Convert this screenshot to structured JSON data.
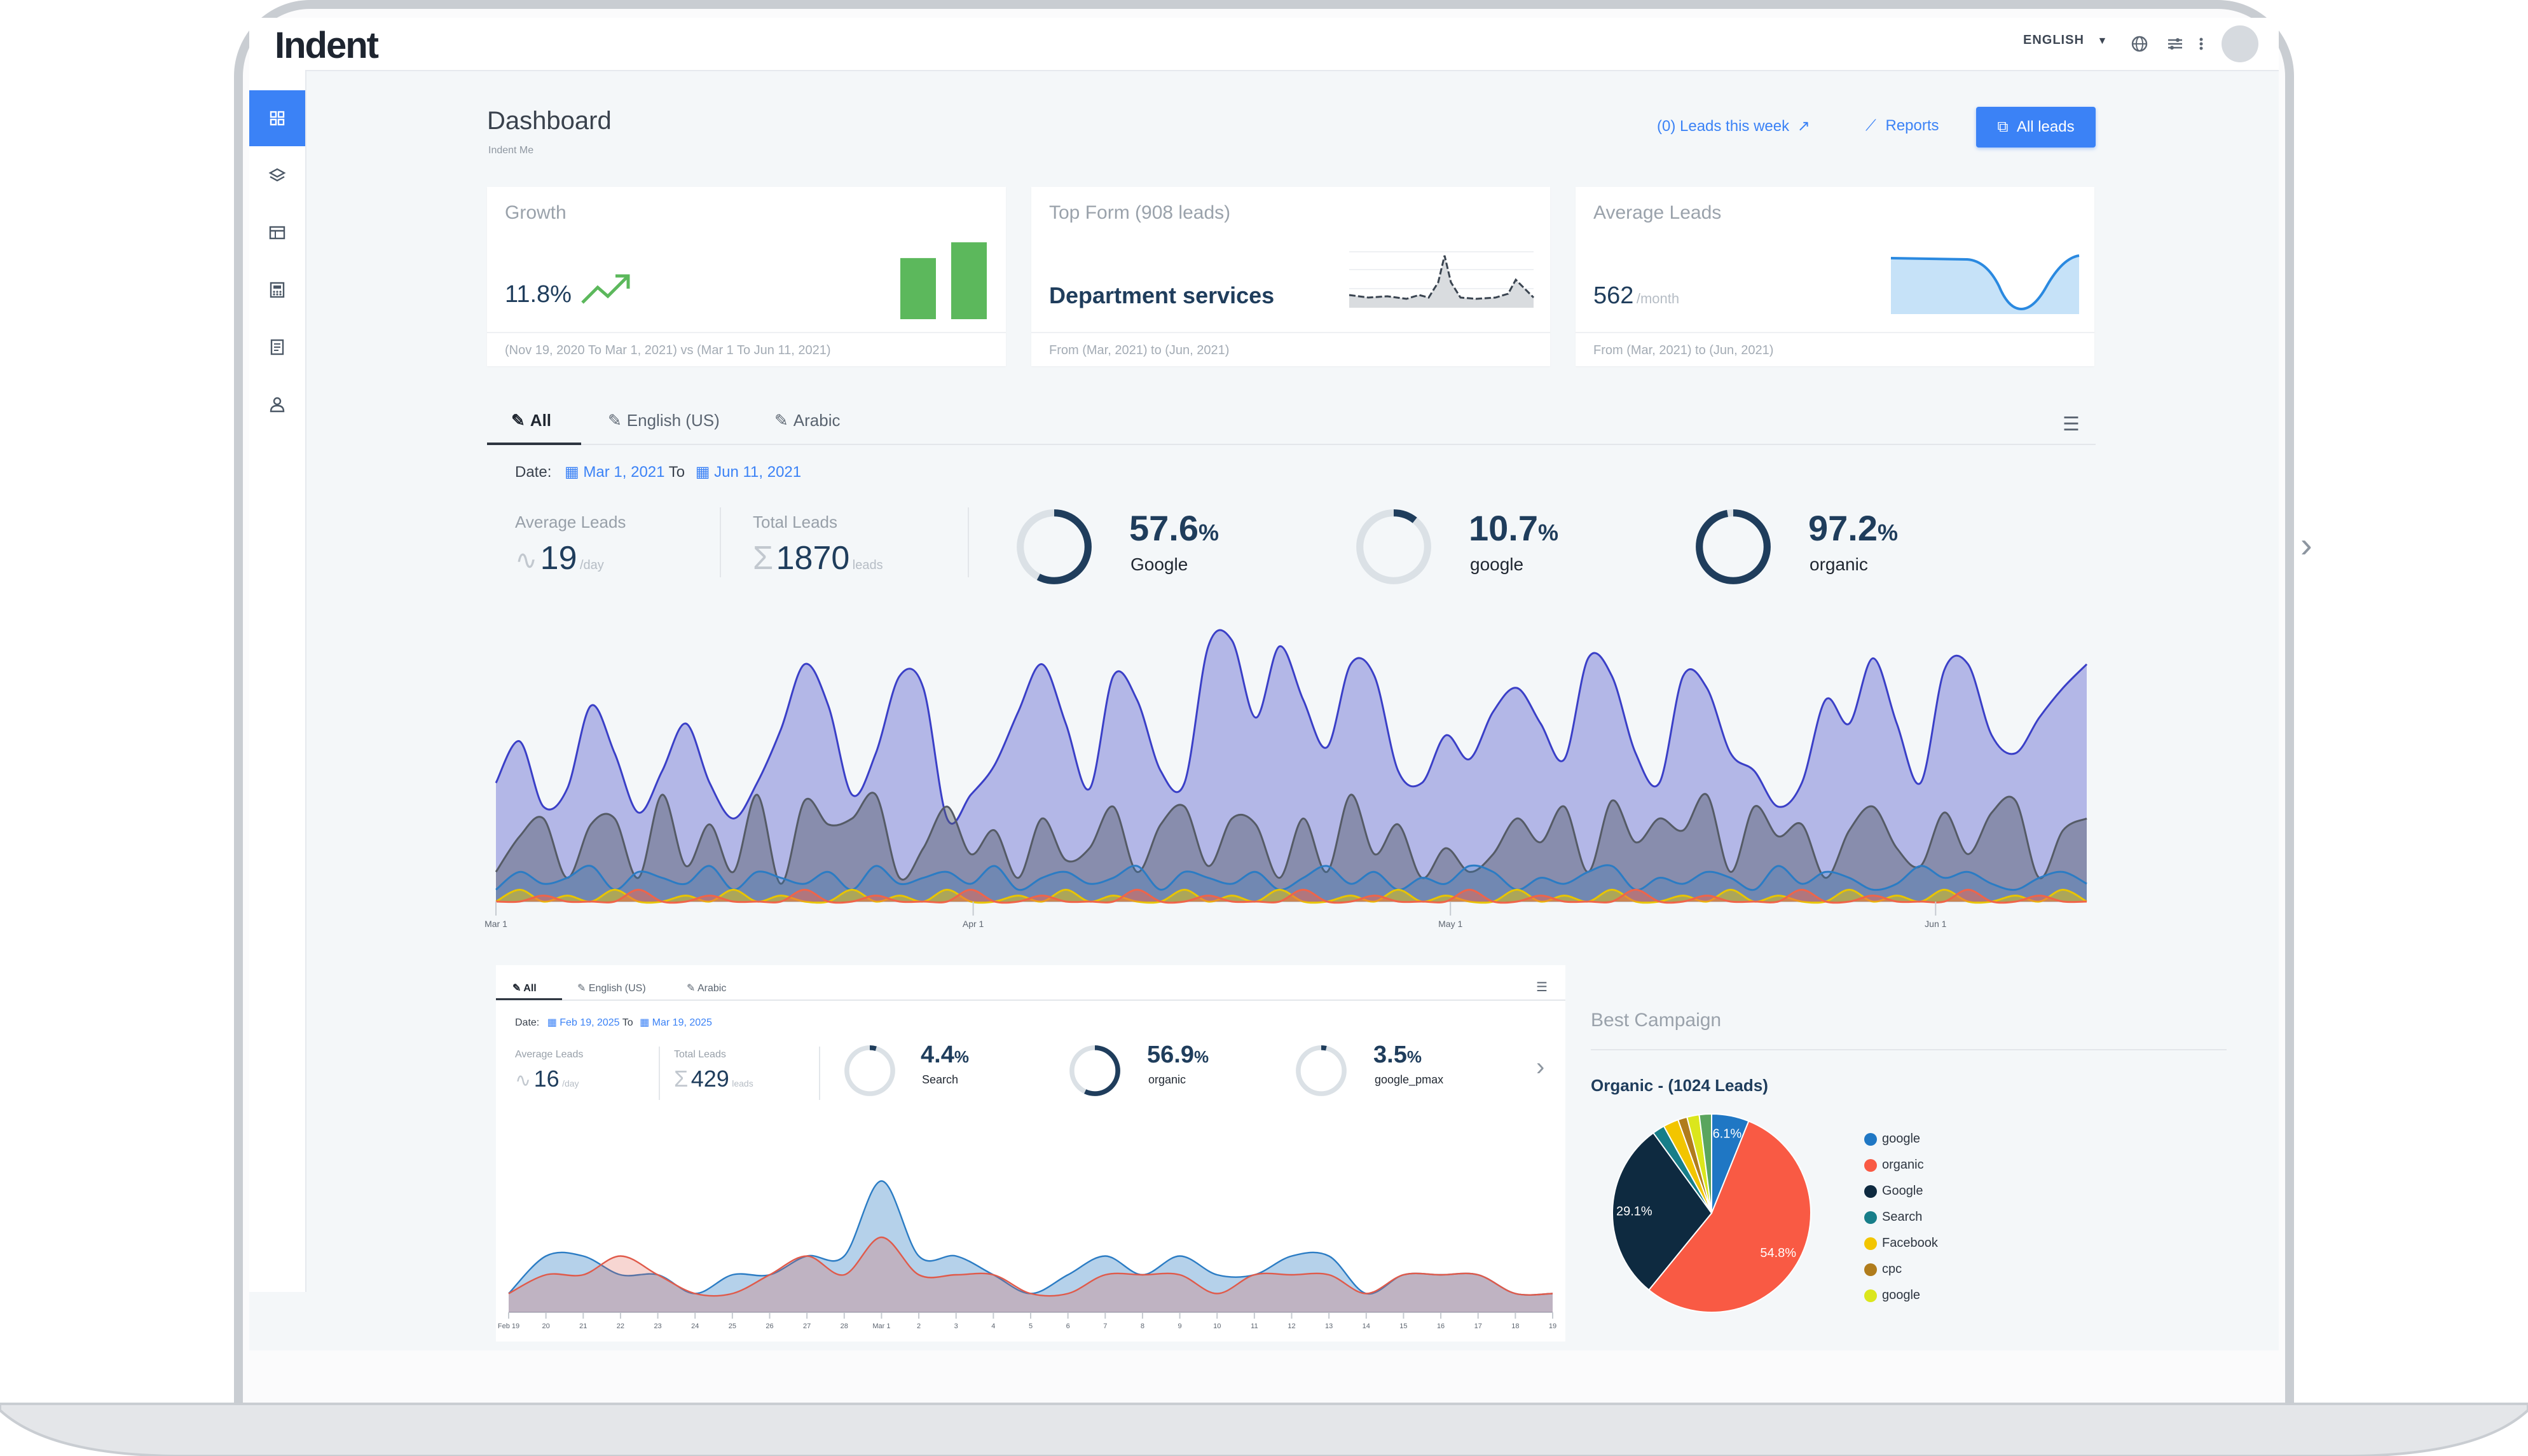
{
  "app": {
    "logo_text": "Indent"
  },
  "topbar": {
    "language": "ENGLISH",
    "icons": [
      "globe-icon",
      "sliders-icon",
      "more-vertical-icon"
    ]
  },
  "sidebar": {
    "items": [
      {
        "icon": "dashboard-icon",
        "active": true
      },
      {
        "icon": "layers-icon",
        "active": false
      },
      {
        "icon": "table-icon",
        "active": false
      },
      {
        "icon": "calculator-icon",
        "active": false
      },
      {
        "icon": "document-icon",
        "active": false
      },
      {
        "icon": "user-icon",
        "active": false
      }
    ]
  },
  "header": {
    "title": "Dashboard",
    "subtitle": "Indent Me",
    "leads_this_week": "(0) Leads this week",
    "reports": "Reports",
    "all_leads": "All leads"
  },
  "cards": {
    "growth": {
      "title": "Growth",
      "value": "11.8%",
      "footer": "(Nov 19, 2020 To Mar 1, 2021) vs (Mar 1 To Jun 11, 2021)",
      "bars": [
        3.1,
        3.9
      ],
      "color": "#5cb85c"
    },
    "top_form": {
      "title": "Top Form (908 leads)",
      "value": "Department services",
      "footer": "From (Mar, 2021) to (Jun, 2021)"
    },
    "average_leads": {
      "title": "Average Leads",
      "value": "562",
      "unit": "/month",
      "footer": "From (Mar, 2021) to (Jun, 2021)"
    }
  },
  "main": {
    "tabs": [
      {
        "label": "All"
      },
      {
        "label": "English (US)"
      },
      {
        "label": "Arabic"
      }
    ],
    "date_label": "Date:",
    "date_from": "Mar 1, 2021",
    "date_to_word": "To",
    "date_to": "Jun 11, 2021",
    "avg_leads_label": "Average Leads",
    "avg_leads_value": "19",
    "avg_leads_unit": "/day",
    "total_leads_label": "Total Leads",
    "total_leads_value": "1870",
    "total_leads_unit": "leads",
    "donuts": [
      {
        "value": "57.6",
        "label": "Google",
        "fraction": 0.576
      },
      {
        "value": "10.7",
        "label": "google",
        "fraction": 0.107
      },
      {
        "value": "97.2",
        "label": "organic",
        "fraction": 0.972
      }
    ],
    "pct_sign": "%"
  },
  "small_panel": {
    "tabs": [
      {
        "label": "All"
      },
      {
        "label": "English (US)"
      },
      {
        "label": "Arabic"
      }
    ],
    "date_label": "Date:",
    "date_from": "Feb 19, 2025",
    "date_to_word": "To",
    "date_to": "Mar 19, 2025",
    "avg_leads_label": "Average Leads",
    "avg_leads_value": "16",
    "avg_leads_unit": "/day",
    "total_leads_label": "Total Leads",
    "total_leads_value": "429",
    "total_leads_unit": "leads",
    "donuts": [
      {
        "value": "4.4",
        "label": "Search",
        "fraction": 0.044
      },
      {
        "value": "56.9",
        "label": "organic",
        "fraction": 0.569
      },
      {
        "value": "3.5",
        "label": "google_pmax",
        "fraction": 0.035
      }
    ]
  },
  "best_campaign": {
    "title": "Best Campaign",
    "subtitle": "Organic - (1024 Leads)"
  },
  "chart_data": [
    {
      "type": "area",
      "x_tick_labels": [
        "Mar 1",
        "Apr 1",
        "May 1",
        "Jun 1"
      ],
      "series": [
        {
          "color": "#3a3fc7",
          "values": [
            20,
            27,
            16,
            19,
            33,
            25,
            15,
            22,
            30,
            20,
            14,
            20,
            29,
            40,
            33,
            18,
            25,
            38,
            36,
            14,
            18,
            23,
            32,
            40,
            30,
            19,
            38,
            34,
            22,
            20,
            43,
            44,
            31,
            43,
            34,
            26,
            40,
            38,
            22,
            20,
            28,
            24,
            32,
            36,
            30,
            24,
            41,
            38,
            25,
            20,
            38,
            36,
            25,
            22,
            16,
            20,
            34,
            30,
            41,
            30,
            20,
            39,
            40,
            28,
            25,
            31,
            36,
            40
          ]
        },
        {
          "color": "#555b66",
          "values": [
            5,
            11,
            14,
            4,
            13,
            14,
            4,
            18,
            6,
            13,
            5,
            18,
            3,
            17,
            13,
            14,
            18,
            4,
            9,
            16,
            8,
            12,
            4,
            14,
            7,
            9,
            16,
            5,
            13,
            16,
            6,
            14,
            13,
            4,
            14,
            5,
            18,
            8,
            13,
            4,
            9,
            5,
            8,
            14,
            10,
            16,
            5,
            17,
            10,
            14,
            12,
            18,
            5,
            16,
            11,
            13,
            4,
            12,
            16,
            9,
            6,
            15,
            8,
            15,
            17,
            4,
            12,
            14
          ]
        },
        {
          "color": "#2b7cc4",
          "values": [
            2,
            5,
            3,
            4,
            6,
            2,
            5,
            4,
            3,
            6,
            2,
            5,
            4,
            3,
            5,
            2,
            6,
            3,
            4,
            5,
            3,
            6,
            2,
            4,
            5,
            3,
            4,
            6,
            2,
            5,
            4,
            3,
            5,
            2,
            4,
            6,
            3,
            5,
            2,
            4,
            3,
            6,
            5,
            2,
            4,
            3,
            5,
            6,
            2,
            4,
            3,
            5,
            4,
            2,
            6,
            3,
            5,
            4,
            2,
            3,
            6,
            4,
            5,
            3,
            2,
            4,
            5,
            3
          ]
        },
        {
          "color": "#e8c400",
          "values": [
            0,
            2,
            0,
            1,
            0,
            2,
            0,
            0,
            1,
            0,
            2,
            0,
            1,
            0,
            0,
            2,
            0,
            1,
            0,
            2,
            0,
            0,
            1,
            0,
            2,
            0,
            1,
            0,
            0,
            2,
            0,
            1,
            0,
            2,
            0,
            0,
            1,
            0,
            2,
            0,
            1,
            0,
            0,
            2,
            0,
            1,
            0,
            2,
            0,
            0,
            1,
            0,
            2,
            0,
            1,
            0,
            0,
            2,
            0,
            1,
            0,
            2,
            0,
            0,
            1,
            0,
            2,
            0
          ]
        },
        {
          "color": "#f06449",
          "values": [
            0,
            0,
            1,
            0,
            0,
            0,
            2,
            0,
            0,
            1,
            0,
            0,
            0,
            2,
            0,
            0,
            1,
            0,
            0,
            0,
            2,
            0,
            0,
            1,
            0,
            0,
            0,
            2,
            0,
            0,
            1,
            0,
            0,
            0,
            2,
            0,
            0,
            1,
            0,
            0,
            0,
            2,
            0,
            0,
            1,
            0,
            0,
            0,
            2,
            0,
            0,
            1,
            0,
            0,
            0,
            2,
            0,
            0,
            1,
            0,
            0,
            0,
            2,
            0,
            0,
            1,
            0,
            0
          ]
        }
      ],
      "ylim": [
        0,
        45
      ]
    },
    {
      "type": "area",
      "x_tick_labels": [
        "Feb 19",
        "20",
        "21",
        "22",
        "23",
        "24",
        "25",
        "26",
        "27",
        "28",
        "Mar 1",
        "2",
        "3",
        "4",
        "5",
        "6",
        "7",
        "8",
        "9",
        "10",
        "11",
        "12",
        "13",
        "14",
        "15",
        "16",
        "17",
        "18",
        "19"
      ],
      "series": [
        {
          "color": "#2b7cc4",
          "values": [
            1,
            3,
            3,
            2,
            2,
            1,
            2,
            2,
            3,
            3,
            7,
            3,
            3,
            2,
            1,
            2,
            3,
            2,
            3,
            2,
            2,
            3,
            3,
            1,
            2,
            2,
            2,
            1,
            1
          ]
        },
        {
          "color": "#e05a4a",
          "values": [
            1,
            2,
            2,
            3,
            2,
            1,
            1,
            2,
            3,
            2,
            4,
            2,
            2,
            2,
            1,
            1,
            2,
            2,
            2,
            1,
            2,
            2,
            2,
            1,
            2,
            2,
            2,
            1,
            1
          ]
        }
      ],
      "ylim": [
        0,
        8
      ]
    },
    {
      "type": "pie",
      "slices": [
        {
          "label": "google",
          "value": 6.1,
          "color": "#1f77c4"
        },
        {
          "label": "organic",
          "value": 54.8,
          "color": "#f95a44"
        },
        {
          "label": "Google",
          "value": 29.1,
          "color": "#0e2a40"
        },
        {
          "label": "Search",
          "value": 2.0,
          "color": "#177e89"
        },
        {
          "label": "Facebook",
          "value": 2.5,
          "color": "#f2c500"
        },
        {
          "label": "cpc",
          "value": 1.5,
          "color": "#b07c1c"
        },
        {
          "label": "google",
          "value": 2.0,
          "color": "#dbe61c"
        },
        {
          "label": "",
          "value": 2.0,
          "color": "#5aa55e"
        }
      ],
      "slice_labels": [
        "6.1%",
        "54.8%",
        "29.1%"
      ]
    }
  ]
}
